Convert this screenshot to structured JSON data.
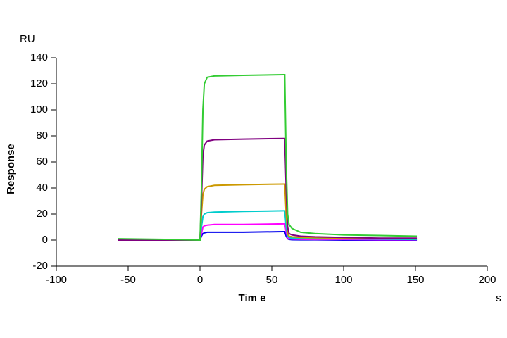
{
  "chart_data": {
    "type": "line",
    "y_unit": "RU",
    "ylabel": "Response",
    "xlabel": "Tim e",
    "x_unit": "s",
    "xlim": [
      -100,
      200
    ],
    "xticks": [
      -100,
      -50,
      0,
      50,
      100,
      150,
      200
    ],
    "ylim": [
      -20,
      140
    ],
    "yticks": [
      -20,
      0,
      20,
      40,
      60,
      80,
      100,
      120,
      140
    ],
    "x": [
      -57,
      -20,
      0,
      1,
      2,
      3,
      5,
      10,
      30,
      58,
      59,
      60,
      61,
      62,
      64,
      70,
      80,
      100,
      125,
      151
    ],
    "series": [
      {
        "color": "#0000ee",
        "values": [
          0,
          0,
          0,
          3,
          5,
          5.5,
          6,
          6,
          6,
          6.5,
          6.5,
          3,
          1,
          0.5,
          0.3,
          0.2,
          0.2,
          0,
          0,
          0
        ]
      },
      {
        "color": "#ff00ff",
        "values": [
          0,
          0,
          0,
          5,
          10,
          11,
          11.5,
          12,
          12,
          12.5,
          12.5,
          6,
          2,
          1,
          0.8,
          0.6,
          0.5,
          0.5,
          0.3,
          0.3
        ]
      },
      {
        "color": "#00cccc",
        "values": [
          0,
          0,
          0,
          10,
          18,
          20,
          21,
          21.5,
          22,
          22.5,
          22.5,
          10,
          3,
          2,
          1.5,
          1.2,
          1,
          1,
          0.8,
          0.5
        ]
      },
      {
        "color": "#cc9900",
        "values": [
          0,
          0,
          0,
          20,
          35,
          39,
          41,
          42,
          42.5,
          43,
          43,
          20,
          5,
          3,
          2.5,
          2,
          1.8,
          1.5,
          1.2,
          1
        ]
      },
      {
        "color": "#800080",
        "values": [
          0,
          0,
          0,
          30,
          65,
          73,
          76,
          77,
          77.5,
          78,
          78,
          40,
          10,
          5,
          4,
          3,
          2.5,
          2,
          1.5,
          1.5
        ]
      },
      {
        "color": "#33cc33",
        "values": [
          1,
          0.5,
          0,
          40,
          100,
          120,
          125,
          126,
          126.5,
          127,
          127,
          60,
          20,
          12,
          9,
          6,
          5,
          4,
          3.5,
          3
        ]
      }
    ]
  }
}
